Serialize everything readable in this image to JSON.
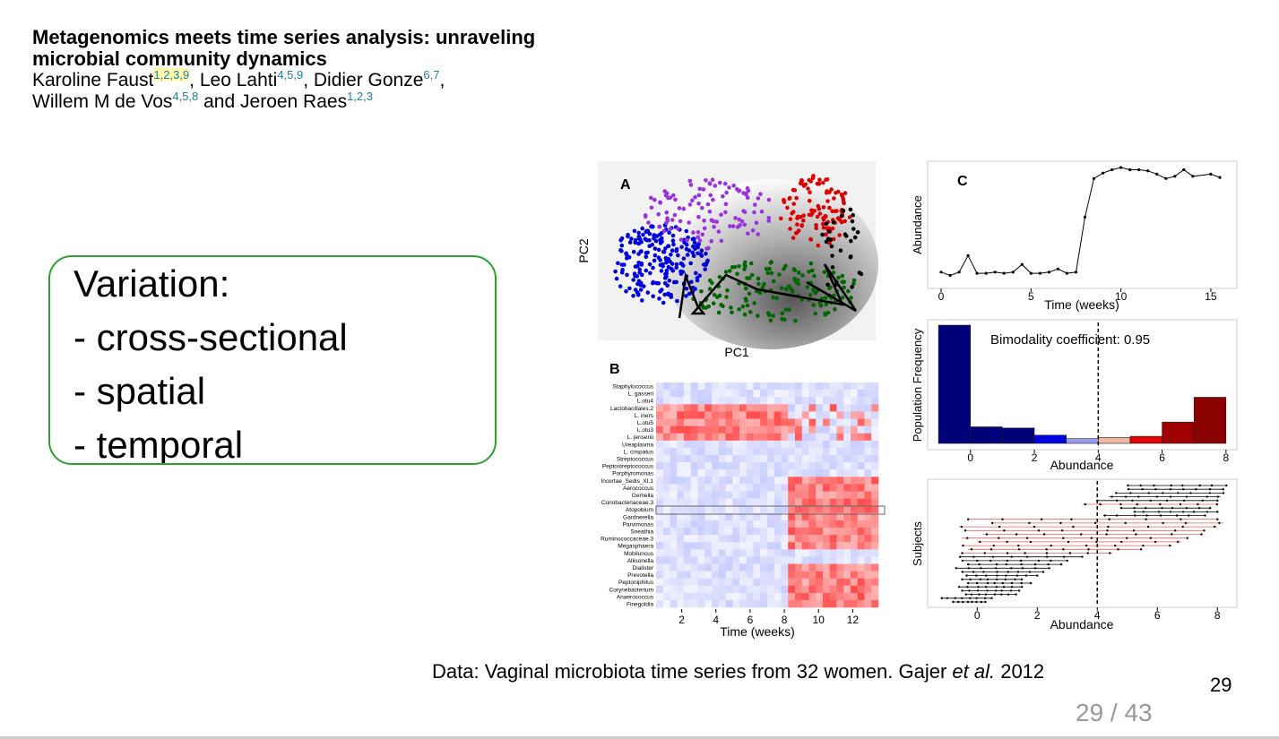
{
  "header": {
    "title_line1": "Metagenomics meets time series analysis: unraveling",
    "title_line2": "microbial community dynamics",
    "authors_line1": [
      {
        "name": "Karoline Faust",
        "sup": "1,2,3,9",
        "sep": ", "
      },
      {
        "name": "Leo Lahti",
        "sup": "4,5,9",
        "sep": ", "
      },
      {
        "name": "Didier Gonze",
        "sup": "6,7",
        "sep": ","
      }
    ],
    "authors_line2": [
      {
        "name": "Willem M de Vos",
        "sup": "4,5,8",
        "sep": " and "
      },
      {
        "name": "Jeroen Raes",
        "sup": "1,2,3",
        "sep": ""
      }
    ]
  },
  "variation": {
    "lines": [
      "Variation:",
      "- cross-sectional",
      "- spatial",
      "- temporal"
    ]
  },
  "figure": {
    "panel_a": {
      "label": "A",
      "xlabel": "PC1",
      "ylabel": "PC2"
    },
    "panel_b": {
      "label": "B",
      "xlabel": "Time (weeks)",
      "xticks": [
        "2",
        "4",
        "6",
        "8",
        "10",
        "12"
      ],
      "taxa": [
        "Staphylococcus",
        "L. gasseri",
        "L.otu4",
        "Lactobacillales.2",
        "L. iners",
        "L.otu5",
        "L.otu3",
        "L. jensenii",
        "Ureaplasma",
        "L. crispatus",
        "Streptococcus",
        "Peptostreptococcus",
        "Porphyromonas",
        "Incertae_Sedis_XI.1",
        "Aerococcus",
        "Gemella",
        "Coriobacteriaceae.3",
        "Atopobium",
        "Gardnerella",
        "Parvimonas",
        "Sneathia",
        "Ruminococcaceae.3",
        "Megasphaera",
        "Mobiluncus",
        "Allisonella",
        "Dialister",
        "Prevotella",
        "Peptoniphilus",
        "Corynebacterium",
        "Anaerococcus",
        "Finegoldia"
      ]
    },
    "panel_c": {
      "label": "C",
      "xlabel": "Time (weeks)",
      "ylabel": "Abundance",
      "xticks": [
        "0",
        "5",
        "10",
        "15"
      ]
    },
    "panel_d": {
      "xlabel": "Abundance",
      "ylabel": "Population Frequency",
      "annotation": "Bimodality coefficient: 0.95",
      "xticks": [
        "0",
        "2",
        "4",
        "6",
        "8"
      ]
    },
    "panel_e": {
      "xlabel": "Abundance",
      "ylabel": "Subjects",
      "xticks": [
        "0",
        "2",
        "4",
        "6",
        "8"
      ]
    }
  },
  "chart_data": [
    {
      "type": "line",
      "panel": "C",
      "xlabel": "Time (weeks)",
      "ylabel": "Abundance",
      "xlim": [
        -0.5,
        16.2
      ],
      "x": [
        0,
        0.5,
        1,
        1.5,
        2,
        2.5,
        3,
        3.5,
        4,
        4.5,
        5,
        5.5,
        6,
        6.5,
        7,
        7.5,
        8,
        8.5,
        9,
        9.5,
        10,
        10.5,
        11,
        11.5,
        12,
        12.5,
        13,
        13.5,
        14,
        15,
        15.5
      ],
      "y": [
        0.05,
        0.02,
        0.05,
        0.2,
        0.04,
        0.04,
        0.05,
        0.04,
        0.05,
        0.12,
        0.04,
        0.04,
        0.05,
        0.08,
        0.04,
        0.05,
        0.55,
        0.9,
        0.95,
        0.98,
        1.0,
        0.98,
        0.98,
        0.97,
        0.94,
        0.9,
        0.92,
        0.98,
        0.92,
        0.94,
        0.91
      ]
    },
    {
      "type": "bar",
      "panel": "D",
      "xlabel": "Abundance",
      "ylabel": "Population Frequency",
      "xlim": [
        -1.2,
        8.2
      ],
      "bins": [
        [
          -1,
          0
        ],
        [
          0,
          1
        ],
        [
          1,
          2
        ],
        [
          2,
          3
        ],
        [
          3,
          4
        ],
        [
          4,
          5
        ],
        [
          5,
          6
        ],
        [
          6,
          7
        ],
        [
          7,
          8
        ]
      ],
      "values": [
        1.0,
        0.14,
        0.13,
        0.07,
        0.04,
        0.05,
        0.06,
        0.18,
        0.39
      ],
      "colors": [
        "#00007a",
        "#00007a",
        "#00007a",
        "#0000e0",
        "#9999ee",
        "#f0b8a0",
        "#e00000",
        "#a00000",
        "#8b0000"
      ],
      "vline": 4
    },
    {
      "type": "scatter",
      "panel": "E",
      "xlabel": "Abundance",
      "ylabel": "Subjects",
      "xlim": [
        -1.5,
        8.5
      ],
      "vline": 4,
      "ranges": [
        [
          5,
          8.3
        ],
        [
          5,
          8.2
        ],
        [
          4.6,
          8.2
        ],
        [
          4.4,
          8.1
        ],
        [
          4,
          8
        ],
        [
          3.5,
          8
        ],
        [
          4.8,
          7.8
        ],
        [
          5.2,
          8
        ],
        [
          4.2,
          7.6
        ],
        [
          -0.3,
          8
        ],
        [
          0.5,
          8.2
        ],
        [
          -0.6,
          8
        ],
        [
          -0.4,
          7.6
        ],
        [
          0.2,
          7.5
        ],
        [
          -0.5,
          7
        ],
        [
          0,
          6.8
        ],
        [
          -0.5,
          6.5
        ],
        [
          -0.3,
          5.5
        ],
        [
          -0.5,
          4.5
        ],
        [
          -0.6,
          3.5
        ],
        [
          -0.5,
          3
        ],
        [
          -0.3,
          2.8
        ],
        [
          -0.7,
          2.4
        ],
        [
          -0.5,
          2.2
        ],
        [
          -0.4,
          2
        ],
        [
          -0.5,
          1.5
        ],
        [
          -0.3,
          1.8
        ],
        [
          -0.6,
          1.5
        ],
        [
          -0.5,
          1.4
        ],
        [
          -0.4,
          1.3
        ],
        [
          -1.2,
          0.5
        ],
        [
          -0.8,
          0.3
        ]
      ]
    },
    {
      "type": "heatmap",
      "panel": "B",
      "xlabel": "Time (weeks)",
      "xlim": [
        0.5,
        13.5
      ]
    }
  ],
  "caption": {
    "prefix": "Data: Vaginal microbiota time series from 32 women. Gajer ",
    "italic": "et al.",
    "suffix": " 2012"
  },
  "slide": {
    "number": "29",
    "pager": "29 / 43"
  }
}
